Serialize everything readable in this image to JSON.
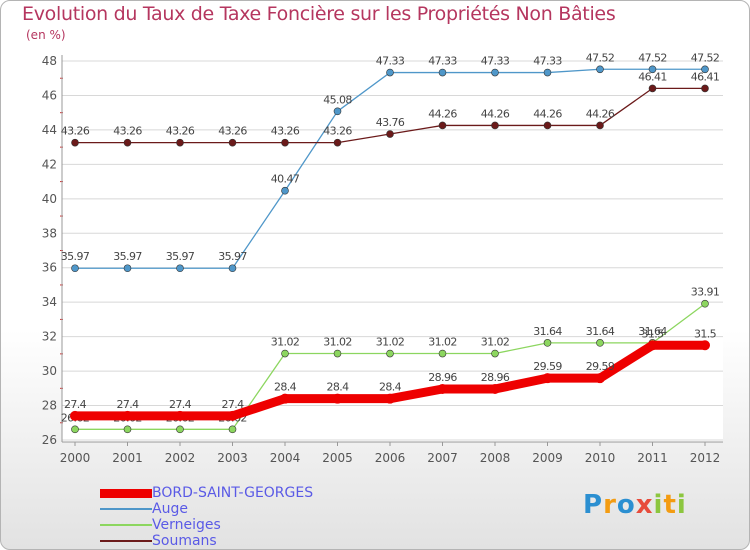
{
  "header": {
    "title": "Evolution du Taux de Taxe Foncière sur les Propriétés Non Bâties",
    "unit": "(en %)"
  },
  "brand": {
    "letters": [
      "P",
      "r",
      "o",
      "x",
      "i",
      "t",
      "i"
    ],
    "colors": [
      "#2b8fd1",
      "#f39c12",
      "#2b8fd1",
      "#e74c3c",
      "#8cc63f",
      "#f39c12",
      "#8cc63f"
    ]
  },
  "chart_data": {
    "type": "line",
    "title": "Evolution du Taux de Taxe Foncière sur les Propriétés Non Bâties",
    "ylabel": "(en %)",
    "xlabel": "",
    "ylim": [
      26,
      48
    ],
    "yticks": [
      26,
      28,
      30,
      32,
      34,
      36,
      38,
      40,
      42,
      44,
      46,
      48
    ],
    "categories": [
      "2000",
      "2001",
      "2002",
      "2003",
      "2004",
      "2005",
      "2006",
      "2007",
      "2008",
      "2009",
      "2010",
      "2011",
      "2012"
    ],
    "series": [
      {
        "name": "BORD-SAINT-GEORGES",
        "color": "#ee0000",
        "bold": true,
        "values": [
          27.4,
          27.4,
          27.4,
          27.4,
          28.4,
          28.4,
          28.4,
          28.96,
          28.96,
          29.59,
          29.59,
          31.5,
          31.5
        ]
      },
      {
        "name": "Auge",
        "color": "#4f97c9",
        "bold": false,
        "values": [
          35.97,
          35.97,
          35.97,
          35.97,
          40.47,
          45.08,
          47.33,
          47.33,
          47.33,
          47.33,
          47.52,
          47.52,
          47.52
        ]
      },
      {
        "name": "Verneiges",
        "color": "#8cd65f",
        "bold": false,
        "values": [
          26.62,
          26.62,
          26.62,
          26.62,
          31.02,
          31.02,
          31.02,
          31.02,
          31.02,
          31.64,
          31.64,
          31.64,
          33.91
        ]
      },
      {
        "name": "Soumans",
        "color": "#6b1a1a",
        "bold": false,
        "values": [
          43.26,
          43.26,
          43.26,
          43.26,
          43.26,
          43.26,
          43.76,
          44.26,
          44.26,
          44.26,
          44.26,
          46.41,
          46.41
        ]
      }
    ]
  }
}
